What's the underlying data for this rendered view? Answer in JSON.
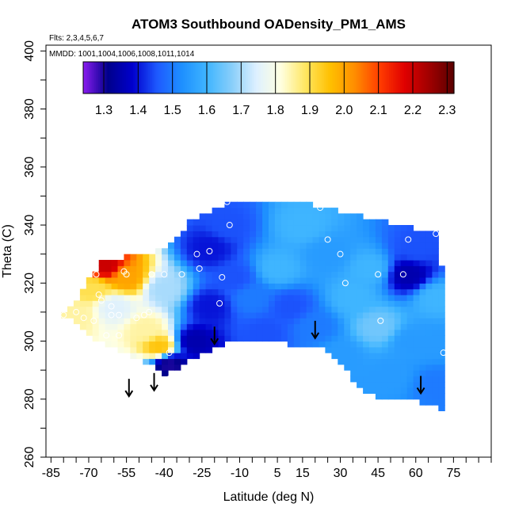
{
  "chart_data": {
    "type": "heatmap",
    "title": "ATOM3 Southbound OADensity_PM1_AMS",
    "flights_note": "Flts: 2,3,4,5,6,7",
    "dates_note": "MMDD: 1001,1004,1006,1008,1011,1014",
    "xlabel": "Latitude (deg N)",
    "ylabel": "Theta (C)",
    "xlim": [
      -87,
      90
    ],
    "ylim": [
      260,
      402
    ],
    "x_ticks": [
      -85,
      -70,
      -55,
      -40,
      -25,
      -10,
      5,
      15,
      30,
      45,
      60,
      75
    ],
    "y_ticks": [
      260,
      280,
      300,
      320,
      340,
      360,
      380,
      400
    ],
    "colorbar": {
      "min": 1.24,
      "max": 2.32,
      "ticks": [
        1.3,
        1.4,
        1.5,
        1.6,
        1.7,
        1.8,
        1.9,
        2.0,
        2.1,
        2.2,
        2.3
      ],
      "tick_labels": [
        "1.3",
        "1.4",
        "1.5",
        "1.6",
        "1.7",
        "1.8",
        "1.9",
        "2.0",
        "2.1",
        "2.2",
        "2.3"
      ],
      "colors": [
        "#8B1CF0",
        "#00008B",
        "#0000CD",
        "#1E5AFF",
        "#1E90FF",
        "#3FB5FF",
        "#87CEFA",
        "#DDF0FF",
        "#FFFFE0",
        "#FFE660",
        "#FFC000",
        "#FF8C00",
        "#FF3C00",
        "#E00000",
        "#A00000",
        "#5A0000"
      ]
    },
    "profile_bounds": [
      {
        "lat": -80,
        "top": 309,
        "bottom": 309
      },
      {
        "lat": -75,
        "top": 313,
        "bottom": 306
      },
      {
        "lat": -70,
        "top": 321,
        "bottom": 302
      },
      {
        "lat": -65,
        "top": 327,
        "bottom": 300
      },
      {
        "lat": -60,
        "top": 328,
        "bottom": 298
      },
      {
        "lat": -55,
        "top": 329,
        "bottom": 296
      },
      {
        "lat": -50,
        "top": 330,
        "bottom": 294
      },
      {
        "lat": -45,
        "top": 330,
        "bottom": 292
      },
      {
        "lat": -40,
        "top": 332,
        "bottom": 288
      },
      {
        "lat": -35,
        "top": 336,
        "bottom": 290
      },
      {
        "lat": -30,
        "top": 341,
        "bottom": 293
      },
      {
        "lat": -25,
        "top": 343,
        "bottom": 296
      },
      {
        "lat": -20,
        "top": 345,
        "bottom": 297
      },
      {
        "lat": -15,
        "top": 347,
        "bottom": 299
      },
      {
        "lat": -10,
        "top": 348,
        "bottom": 300
      },
      {
        "lat": -5,
        "top": 348,
        "bottom": 300
      },
      {
        "lat": 0,
        "top": 348,
        "bottom": 300
      },
      {
        "lat": 5,
        "top": 347,
        "bottom": 300
      },
      {
        "lat": 10,
        "top": 347,
        "bottom": 299
      },
      {
        "lat": 15,
        "top": 347,
        "bottom": 298
      },
      {
        "lat": 20,
        "top": 347,
        "bottom": 299
      },
      {
        "lat": 25,
        "top": 346,
        "bottom": 297
      },
      {
        "lat": 30,
        "top": 345,
        "bottom": 293
      },
      {
        "lat": 35,
        "top": 344,
        "bottom": 287
      },
      {
        "lat": 40,
        "top": 343,
        "bottom": 282
      },
      {
        "lat": 45,
        "top": 342,
        "bottom": 281
      },
      {
        "lat": 50,
        "top": 341,
        "bottom": 281
      },
      {
        "lat": 55,
        "top": 340,
        "bottom": 281
      },
      {
        "lat": 60,
        "top": 339,
        "bottom": 280
      },
      {
        "lat": 65,
        "top": 338,
        "bottom": 278
      },
      {
        "lat": 70,
        "top": 337,
        "bottom": 277
      },
      {
        "lat": 71,
        "top": 296,
        "bottom": 277
      }
    ],
    "field_features": [
      {
        "lat": -55,
        "theta": 322,
        "value": 2.0
      },
      {
        "lat": -63,
        "theta": 326,
        "value": 2.2
      },
      {
        "lat": -68,
        "theta": 318,
        "value": 1.9
      },
      {
        "lat": -75,
        "theta": 309,
        "value": 1.85
      },
      {
        "lat": -42,
        "theta": 298,
        "value": 1.95
      },
      {
        "lat": -47,
        "theta": 304,
        "value": 1.85
      },
      {
        "lat": -60,
        "theta": 312,
        "value": 1.75
      },
      {
        "lat": -40,
        "theta": 318,
        "value": 1.7
      },
      {
        "lat": -38,
        "theta": 292,
        "value": 1.3
      },
      {
        "lat": -28,
        "theta": 300,
        "value": 1.35
      },
      {
        "lat": -22,
        "theta": 312,
        "value": 1.4
      },
      {
        "lat": -12,
        "theta": 322,
        "value": 1.45
      },
      {
        "lat": -22,
        "theta": 332,
        "value": 1.4
      },
      {
        "lat": -15,
        "theta": 340,
        "value": 1.45
      },
      {
        "lat": -5,
        "theta": 315,
        "value": 1.5
      },
      {
        "lat": 10,
        "theta": 312,
        "value": 1.45
      },
      {
        "lat": 20,
        "theta": 305,
        "value": 1.5
      },
      {
        "lat": 5,
        "theta": 325,
        "value": 1.6
      },
      {
        "lat": 25,
        "theta": 330,
        "value": 1.55
      },
      {
        "lat": 15,
        "theta": 340,
        "value": 1.6
      },
      {
        "lat": 35,
        "theta": 315,
        "value": 1.6
      },
      {
        "lat": 45,
        "theta": 305,
        "value": 1.65
      },
      {
        "lat": 42,
        "theta": 325,
        "value": 1.6
      },
      {
        "lat": 57,
        "theta": 323,
        "value": 1.35
      },
      {
        "lat": 60,
        "theta": 332,
        "value": 1.45
      },
      {
        "lat": 58,
        "theta": 300,
        "value": 1.55
      },
      {
        "lat": 50,
        "theta": 288,
        "value": 1.55
      },
      {
        "lat": 68,
        "theta": 300,
        "value": 1.55
      },
      {
        "lat": 68,
        "theta": 315,
        "value": 1.6
      },
      {
        "lat": 68,
        "theta": 285,
        "value": 1.5
      },
      {
        "lat": 30,
        "theta": 295,
        "value": 1.55
      },
      {
        "lat": 0,
        "theta": 303,
        "value": 1.45
      }
    ],
    "sample_points": [
      {
        "lat": -80,
        "theta": 309
      },
      {
        "lat": -75,
        "theta": 310
      },
      {
        "lat": -72,
        "theta": 308
      },
      {
        "lat": -68,
        "theta": 307
      },
      {
        "lat": -65,
        "theta": 314
      },
      {
        "lat": -66,
        "theta": 316
      },
      {
        "lat": -67,
        "theta": 323
      },
      {
        "lat": -63,
        "theta": 302
      },
      {
        "lat": -61,
        "theta": 312
      },
      {
        "lat": -61,
        "theta": 309
      },
      {
        "lat": -58,
        "theta": 309
      },
      {
        "lat": -58,
        "theta": 302
      },
      {
        "lat": -56,
        "theta": 324
      },
      {
        "lat": -55,
        "theta": 323
      },
      {
        "lat": -51,
        "theta": 308
      },
      {
        "lat": -48,
        "theta": 309
      },
      {
        "lat": -46,
        "theta": 310
      },
      {
        "lat": -45,
        "theta": 323
      },
      {
        "lat": -40,
        "theta": 323
      },
      {
        "lat": -38,
        "theta": 296
      },
      {
        "lat": -38,
        "theta": 287
      },
      {
        "lat": -33,
        "theta": 323
      },
      {
        "lat": -27,
        "theta": 330
      },
      {
        "lat": -26,
        "theta": 325
      },
      {
        "lat": -22,
        "theta": 331
      },
      {
        "lat": -18,
        "theta": 313
      },
      {
        "lat": -17,
        "theta": 322
      },
      {
        "lat": -14,
        "theta": 340
      },
      {
        "lat": -15,
        "theta": 348
      },
      {
        "lat": 22,
        "theta": 346
      },
      {
        "lat": 25,
        "theta": 335
      },
      {
        "lat": 30,
        "theta": 330
      },
      {
        "lat": 32,
        "theta": 320
      },
      {
        "lat": 45,
        "theta": 323
      },
      {
        "lat": 46,
        "theta": 307
      },
      {
        "lat": 55,
        "theta": 323
      },
      {
        "lat": 57,
        "theta": 335
      },
      {
        "lat": 68,
        "theta": 337
      },
      {
        "lat": 71,
        "theta": 296
      }
    ],
    "arrows": [
      {
        "lat": -54,
        "theta": 284
      },
      {
        "lat": -44,
        "theta": 286
      },
      {
        "lat": -20,
        "theta": 302
      },
      {
        "lat": 20,
        "theta": 304
      },
      {
        "lat": 62,
        "theta": 285
      }
    ]
  }
}
